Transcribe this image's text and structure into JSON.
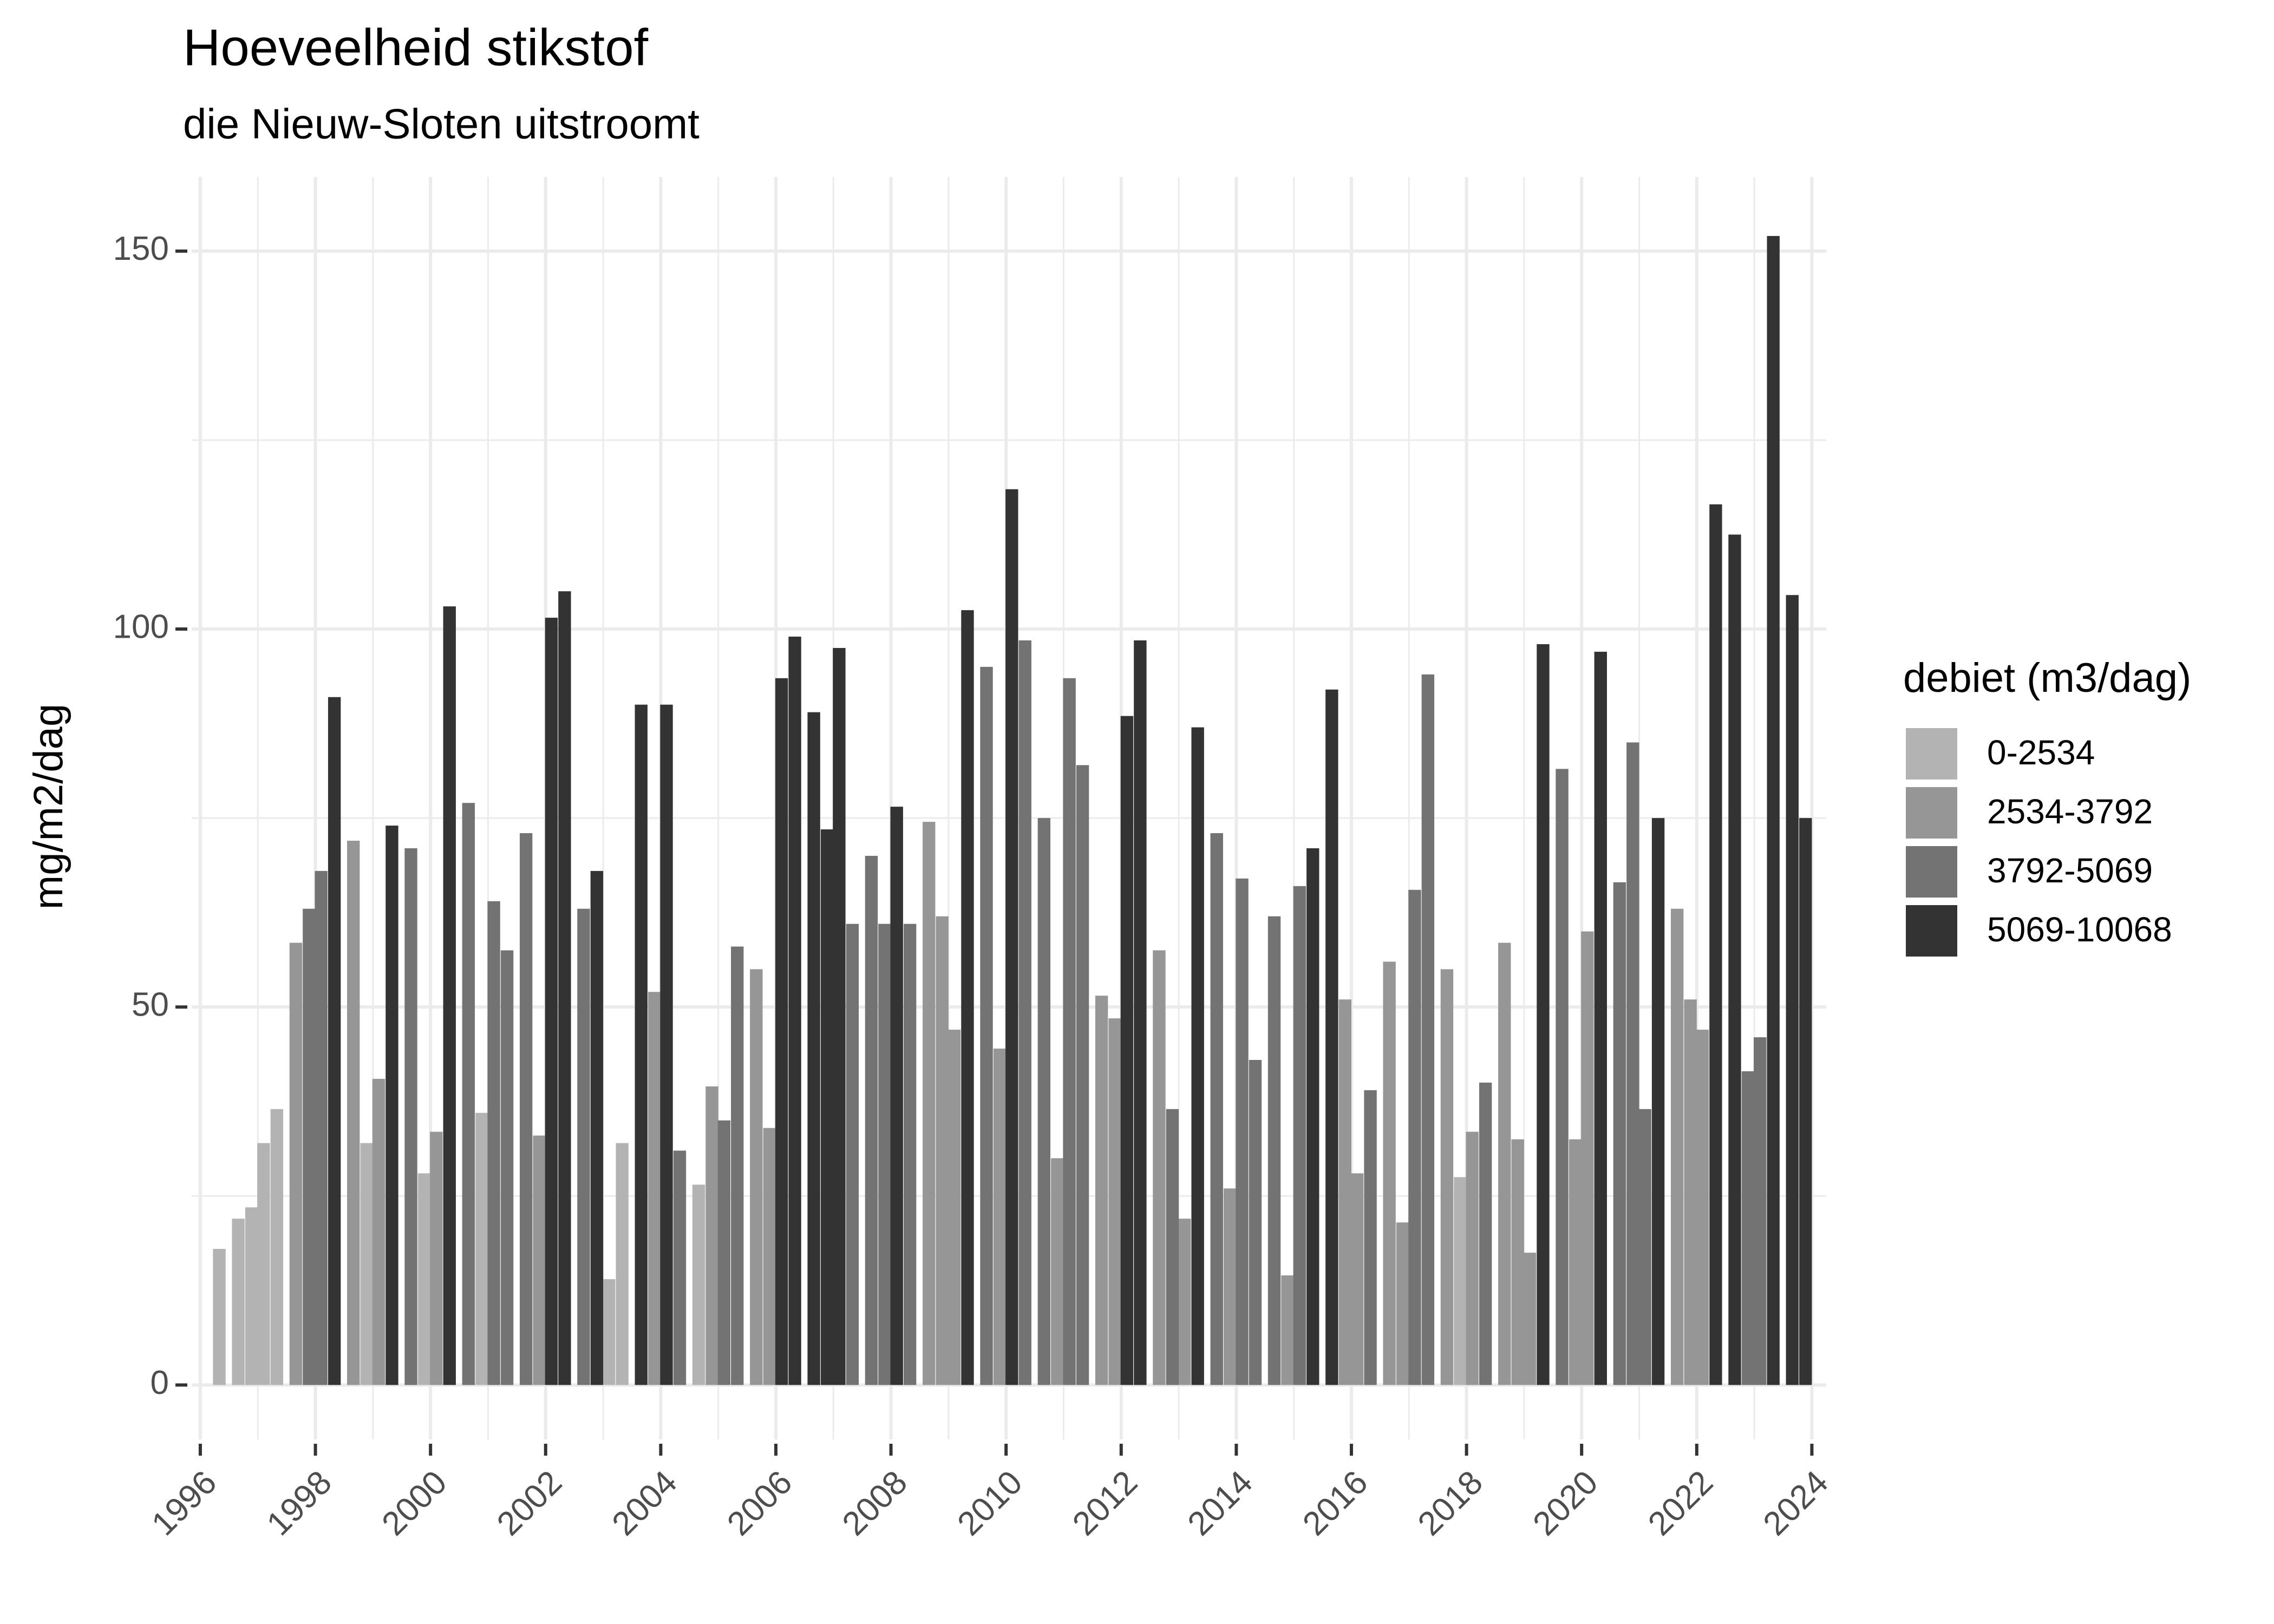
{
  "chart_data": {
    "type": "bar",
    "title": "Hoeveelheid stikstof",
    "subtitle": "die Nieuw-Sloten uitstroomt",
    "y_label": "mg/m2/dag",
    "legend_title": "debiet (m3/dag)",
    "legend_position": "right",
    "grid": true,
    "xlim": [
      1995.85,
      2024.25
    ],
    "xticks": [
      1996,
      1998,
      2000,
      2002,
      2004,
      2006,
      2008,
      2010,
      2012,
      2014,
      2016,
      2018,
      2020,
      2022,
      2024
    ],
    "ylim": [
      -7.2,
      159.8
    ],
    "yticks": [
      0,
      50,
      100,
      150
    ],
    "x": [
      1996.33,
      1996.66,
      1996.89,
      1997.1,
      1997.33,
      1997.66,
      1997.89,
      1998.1,
      1998.33,
      1998.66,
      1998.89,
      1999.1,
      1999.33,
      1999.66,
      1999.89,
      2000.1,
      2000.33,
      2000.66,
      2000.89,
      2001.1,
      2001.33,
      2001.66,
      2001.89,
      2002.1,
      2002.33,
      2002.66,
      2002.89,
      2003.1,
      2003.33,
      2003.66,
      2003.89,
      2004.1,
      2004.33,
      2004.66,
      2004.89,
      2005.1,
      2005.33,
      2005.66,
      2005.89,
      2006.1,
      2006.33,
      2006.66,
      2006.89,
      2007.1,
      2007.33,
      2007.66,
      2007.89,
      2008.1,
      2008.33,
      2008.66,
      2008.89,
      2009.1,
      2009.33,
      2009.66,
      2009.89,
      2010.1,
      2010.33,
      2010.66,
      2010.89,
      2011.1,
      2011.33,
      2011.66,
      2011.89,
      2012.1,
      2012.33,
      2012.66,
      2012.89,
      2013.1,
      2013.33,
      2013.66,
      2013.89,
      2014.1,
      2014.33,
      2014.66,
      2014.89,
      2015.1,
      2015.33,
      2015.66,
      2015.89,
      2016.1,
      2016.33,
      2016.66,
      2016.89,
      2017.1,
      2017.33,
      2017.66,
      2017.89,
      2018.1,
      2018.33,
      2018.66,
      2018.89,
      2019.1,
      2019.33,
      2019.66,
      2019.89,
      2020.1,
      2020.33,
      2020.66,
      2020.89,
      2021.1,
      2021.33,
      2021.66,
      2021.89,
      2022.1,
      2022.33,
      2022.66,
      2022.89,
      2023.1,
      2023.33,
      2023.66,
      2023.89
    ],
    "series": [
      {
        "name": "0-2534",
        "color": "#b3b3b3",
        "values": [
          18,
          22,
          23.5,
          32,
          36.5,
          null,
          null,
          null,
          null,
          null,
          32,
          null,
          null,
          null,
          28,
          null,
          null,
          null,
          36,
          null,
          null,
          null,
          null,
          null,
          null,
          null,
          null,
          14,
          32,
          null,
          null,
          null,
          null,
          26.5,
          null,
          null,
          null,
          null,
          null,
          null,
          null,
          null,
          null,
          null,
          null,
          null,
          null,
          null,
          null,
          null,
          null,
          null,
          null,
          null,
          null,
          null,
          null,
          null,
          null,
          null,
          null,
          null,
          null,
          null,
          null,
          null,
          null,
          null,
          null,
          null,
          null,
          null,
          null,
          null,
          null,
          null,
          null,
          null,
          null,
          null,
          null,
          null,
          null,
          null,
          null,
          null,
          27.5,
          null,
          null,
          null,
          null,
          null,
          null,
          null,
          null,
          null,
          null,
          null,
          null,
          null,
          null,
          null,
          null,
          null,
          null,
          null,
          null,
          null,
          null,
          null,
          null
        ]
      },
      {
        "name": "2534-3792",
        "color": "#969696",
        "values": [
          null,
          null,
          null,
          null,
          null,
          58.5,
          null,
          null,
          null,
          72,
          null,
          40.5,
          null,
          null,
          null,
          33.5,
          null,
          null,
          null,
          null,
          null,
          null,
          33,
          null,
          null,
          null,
          null,
          null,
          null,
          null,
          52,
          null,
          null,
          null,
          39.5,
          null,
          null,
          55,
          34,
          null,
          null,
          null,
          null,
          null,
          null,
          null,
          null,
          null,
          null,
          74.5,
          62,
          47,
          null,
          null,
          44.5,
          null,
          null,
          null,
          30,
          null,
          null,
          51.5,
          48.5,
          null,
          null,
          57.5,
          null,
          22,
          null,
          null,
          26,
          null,
          null,
          null,
          14.5,
          null,
          null,
          null,
          51,
          28,
          null,
          56,
          21.5,
          null,
          null,
          55,
          null,
          33.5,
          null,
          58.5,
          32.5,
          17.5,
          null,
          null,
          32.5,
          60,
          null,
          null,
          null,
          null,
          null,
          63,
          51,
          47,
          null,
          null,
          null,
          null,
          null,
          null,
          null
        ]
      },
      {
        "name": "3792-5069",
        "color": "#737373",
        "values": [
          null,
          null,
          null,
          null,
          null,
          null,
          63,
          68,
          null,
          null,
          null,
          null,
          null,
          71,
          null,
          null,
          null,
          77,
          null,
          64,
          57.5,
          73,
          null,
          null,
          null,
          63,
          null,
          null,
          null,
          null,
          null,
          null,
          31,
          null,
          null,
          35,
          58,
          null,
          null,
          null,
          null,
          null,
          null,
          null,
          61,
          70,
          61,
          null,
          61,
          null,
          null,
          null,
          null,
          95,
          null,
          null,
          98.5,
          75,
          null,
          93.5,
          82,
          null,
          null,
          null,
          null,
          null,
          36.5,
          null,
          null,
          73,
          null,
          67,
          43,
          62,
          null,
          66,
          null,
          null,
          null,
          null,
          39,
          null,
          null,
          65.5,
          94,
          null,
          null,
          null,
          40,
          null,
          null,
          null,
          null,
          81.5,
          null,
          null,
          null,
          66.5,
          85,
          36.5,
          null,
          null,
          null,
          null,
          null,
          null,
          41.5,
          46,
          null,
          null,
          null
        ]
      },
      {
        "name": "5069-10068",
        "color": "#333333",
        "values": [
          null,
          null,
          null,
          null,
          null,
          null,
          null,
          null,
          91,
          null,
          null,
          null,
          74,
          null,
          null,
          null,
          103,
          null,
          null,
          null,
          null,
          null,
          null,
          101.5,
          105,
          null,
          68,
          null,
          null,
          90,
          null,
          90,
          null,
          null,
          null,
          null,
          null,
          null,
          null,
          93.5,
          99,
          89,
          73.5,
          97.5,
          null,
          null,
          null,
          76.5,
          null,
          null,
          null,
          null,
          102.5,
          null,
          null,
          118.5,
          null,
          null,
          null,
          null,
          null,
          null,
          null,
          88.5,
          98.5,
          null,
          null,
          null,
          87,
          null,
          null,
          null,
          null,
          null,
          null,
          null,
          71,
          92,
          null,
          null,
          null,
          null,
          null,
          null,
          null,
          null,
          null,
          null,
          null,
          null,
          null,
          null,
          98,
          null,
          null,
          null,
          97,
          null,
          null,
          null,
          75,
          null,
          null,
          null,
          116.5,
          112.5,
          null,
          null,
          152,
          104.5,
          75
        ]
      }
    ]
  }
}
